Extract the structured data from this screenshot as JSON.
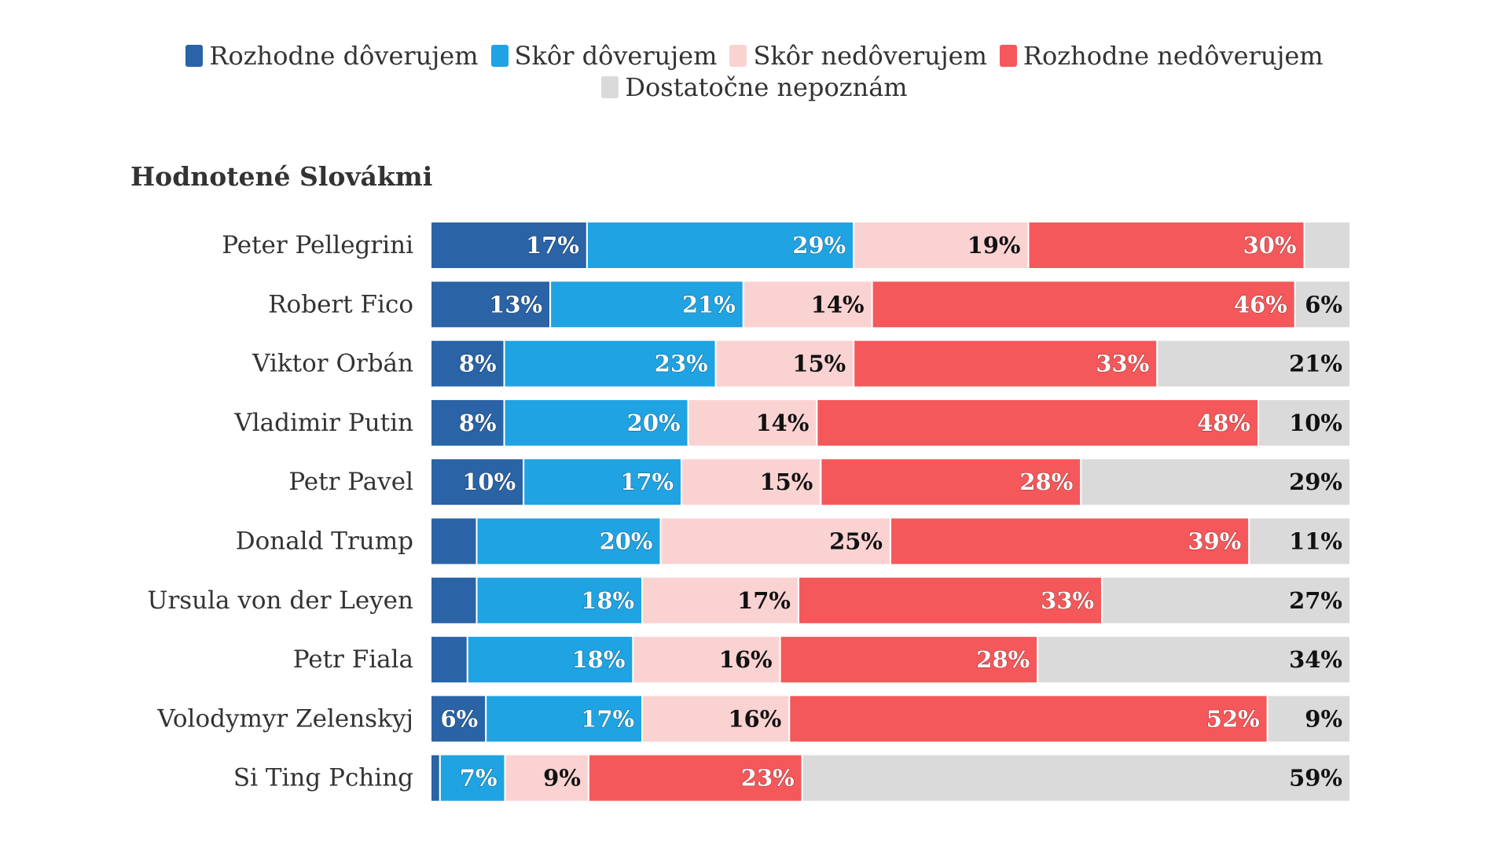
{
  "chart_data": {
    "type": "bar",
    "orientation": "horizontal",
    "stacked": true,
    "subtitle": "Hodnotené Slovákmi",
    "categories": [
      "Peter Pellegrini",
      "Robert Fico",
      "Viktor Orbán",
      "Vladimir Putin",
      "Petr Pavel",
      "Donald Trump",
      "Ursula von der Leyen",
      "Petr Fiala",
      "Volodymyr Zelenskyj",
      "Si Ting Pching"
    ],
    "series": [
      {
        "name": "Rozhodne dôverujem",
        "color": "#2a63a6",
        "values": [
          17,
          13,
          8,
          8,
          10,
          5,
          5,
          4,
          6,
          1
        ],
        "labels": [
          "17%",
          "13%",
          "8%",
          "8%",
          "10%",
          "",
          "",
          "",
          "6%",
          ""
        ]
      },
      {
        "name": "Skôr dôverujem",
        "color": "#1fa3e2",
        "values": [
          29,
          21,
          23,
          20,
          17,
          20,
          18,
          18,
          17,
          7
        ],
        "labels": [
          "29%",
          "21%",
          "23%",
          "20%",
          "17%",
          "20%",
          "18%",
          "18%",
          "17%",
          "7%"
        ]
      },
      {
        "name": "Skôr nedôverujem",
        "color": "#fbd2d2",
        "values": [
          19,
          14,
          15,
          14,
          15,
          25,
          17,
          16,
          16,
          9
        ],
        "labels": [
          "19%",
          "14%",
          "15%",
          "14%",
          "15%",
          "25%",
          "17%",
          "16%",
          "16%",
          "9%"
        ]
      },
      {
        "name": "Rozhodne nedôverujem",
        "color": "#f5585a",
        "values": [
          30,
          46,
          33,
          48,
          28,
          39,
          33,
          28,
          52,
          23
        ],
        "labels": [
          "30%",
          "46%",
          "33%",
          "48%",
          "28%",
          "39%",
          "33%",
          "28%",
          "52%",
          "23%"
        ]
      },
      {
        "name": "Dostatočne nepoznám",
        "color": "#dadada",
        "values": [
          5,
          6,
          21,
          10,
          29,
          11,
          27,
          34,
          9,
          59
        ],
        "labels": [
          "",
          "6%",
          "21%",
          "10%",
          "29%",
          "11%",
          "27%",
          "34%",
          "9%",
          "59%"
        ]
      }
    ],
    "xlim": [
      0,
      100
    ],
    "legend_position": "top-center",
    "grid": false
  }
}
